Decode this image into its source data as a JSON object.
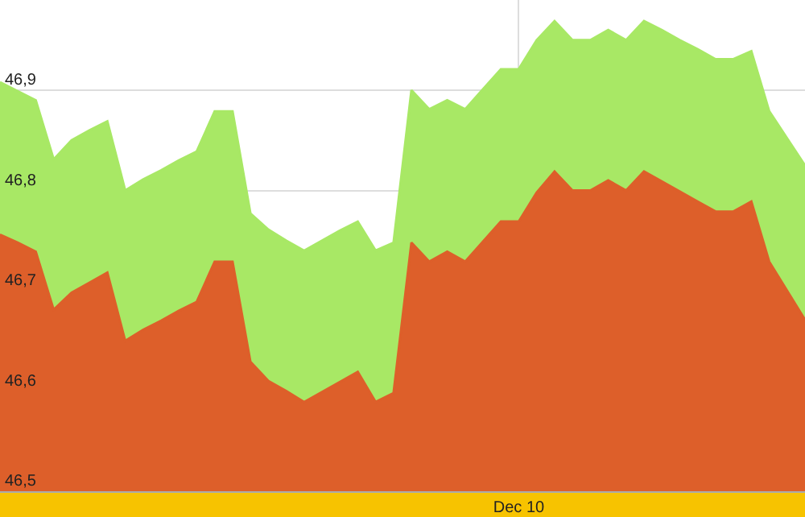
{
  "chart_data": {
    "type": "area",
    "categories": [
      null,
      null,
      null,
      null,
      null,
      null,
      null,
      null,
      null,
      null,
      null,
      null,
      null,
      null,
      null,
      null,
      null,
      null,
      null,
      null,
      null,
      null,
      null,
      null,
      null,
      null,
      null,
      null,
      null,
      "Dec 10",
      null,
      null,
      null,
      null,
      null,
      null,
      null,
      null,
      null,
      null,
      null,
      null,
      null,
      null,
      null,
      null
    ],
    "series": [
      {
        "color": "#a8e865",
        "values": [
          46.908,
          46.899,
          46.89,
          46.831,
          46.85,
          46.86,
          46.869,
          46.8,
          46.811,
          46.82,
          46.83,
          46.839,
          46.879,
          46.879,
          46.777,
          46.761,
          46.75,
          46.74,
          46.75,
          46.76,
          46.769,
          46.74,
          46.748,
          46.9,
          46.881,
          46.89,
          46.881,
          46.901,
          46.921,
          46.921,
          46.95,
          46.969,
          46.95,
          46.95,
          46.96,
          46.95,
          46.969,
          46.96,
          46.95,
          46.941,
          46.931,
          46.931,
          46.939,
          46.879,
          46.852,
          46.825
        ]
      },
      {
        "color": "#dd5f2a",
        "values": [
          46.756,
          46.748,
          46.739,
          46.681,
          46.698,
          46.708,
          46.718,
          46.65,
          46.661,
          46.67,
          46.68,
          46.689,
          46.729,
          46.729,
          46.629,
          46.61,
          46.6,
          46.589,
          46.599,
          46.609,
          46.619,
          46.589,
          46.598,
          46.748,
          46.729,
          46.739,
          46.729,
          46.749,
          46.769,
          46.769,
          46.798,
          46.819,
          46.8,
          46.8,
          46.81,
          46.8,
          46.819,
          46.809,
          46.799,
          46.789,
          46.779,
          46.779,
          46.789,
          46.729,
          46.7,
          46.671
        ]
      }
    ],
    "ylim": [
      46.5,
      46.99
    ],
    "yticks": [
      {
        "value": 46.5,
        "label": "46,5"
      },
      {
        "value": 46.6,
        "label": "46,6"
      },
      {
        "value": 46.7,
        "label": "46,7"
      },
      {
        "value": 46.8,
        "label": "46,8"
      },
      {
        "value": 46.9,
        "label": "46,9"
      }
    ],
    "grid": true
  }
}
